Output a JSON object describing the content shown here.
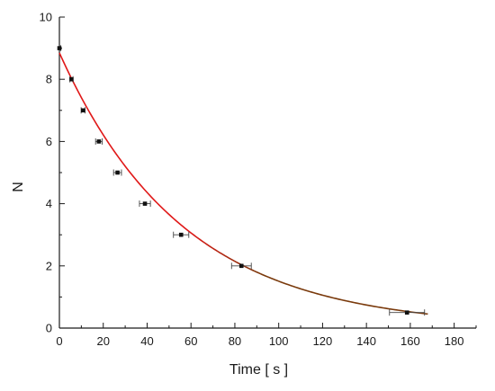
{
  "chart_data": {
    "type": "scatter",
    "xlabel": "Time [ s ]",
    "ylabel": "N",
    "xlim": [
      0,
      190
    ],
    "ylim": [
      0,
      10
    ],
    "x_ticks": [
      0,
      20,
      40,
      60,
      80,
      100,
      120,
      140,
      160,
      180
    ],
    "y_ticks": [
      0,
      2,
      4,
      6,
      8,
      10
    ],
    "grid": false,
    "legend": "none",
    "points": [
      {
        "x": 0,
        "y": 9,
        "xerr": 0.5
      },
      {
        "x": 5.5,
        "y": 8,
        "xerr": 0.7
      },
      {
        "x": 10.8,
        "y": 7,
        "xerr": 0.9
      },
      {
        "x": 18,
        "y": 6,
        "xerr": 1.5
      },
      {
        "x": 26.5,
        "y": 5,
        "xerr": 1.8
      },
      {
        "x": 39,
        "y": 4,
        "xerr": 2.5
      },
      {
        "x": 55.5,
        "y": 3,
        "xerr": 3.5
      },
      {
        "x": 83,
        "y": 2,
        "xerr": 4.5
      },
      {
        "x": 158.5,
        "y": 0.5,
        "xerr": 8
      }
    ],
    "fit": {
      "model": "exponential decay",
      "n0": 8.85,
      "decay_constant": 0.0177,
      "x_range": [
        0,
        168
      ],
      "colors": [
        "#e01818",
        "#7a3a0c"
      ]
    },
    "colors": {
      "points": "#111111",
      "axes": "#1a1a1a"
    }
  }
}
